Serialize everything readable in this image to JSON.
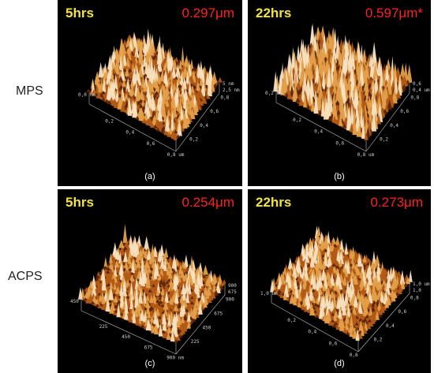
{
  "row_labels": {
    "top": "MPS",
    "bottom": "ACPS"
  },
  "panels": [
    {
      "id": "a",
      "time": "5hrs",
      "roughness": "0.297μm",
      "caption": "(a)",
      "ticks": [
        "0,2",
        "0,4",
        "0,6",
        "0,8 um",
        "0,2",
        "0,4",
        "0,6",
        "0,8",
        "5 nm",
        "2,5 nm",
        "0,0 nm"
      ]
    },
    {
      "id": "b",
      "time": "22hrs",
      "roughness": "0.597μm*",
      "caption": "(b)",
      "ticks": [
        "0,2",
        "0,4",
        "0,6",
        "0,8 um",
        "0,2",
        "0,4",
        "0,6",
        "0,8",
        "0,6",
        "0,4 um",
        "0,2 nm"
      ]
    },
    {
      "id": "c",
      "time": "5hrs",
      "roughness": "0.254μm",
      "caption": "(c)",
      "ticks": [
        "225",
        "450",
        "675",
        "900 nm",
        "225",
        "450",
        "675",
        "900",
        "900",
        "675",
        "450"
      ]
    },
    {
      "id": "d",
      "time": "22hrs",
      "roughness": "0.273μm",
      "caption": "(d)",
      "ticks": [
        "0,2",
        "0,4",
        "0,6",
        "0,8",
        "0,2",
        "0,4",
        "0,6",
        "0,8",
        "1,0 um",
        "1,0",
        "1,0 um"
      ]
    }
  ],
  "colors": {
    "panel_bg": "#000000",
    "time_label": "#f2e24a",
    "roughness_label": "#ff2020",
    "surface_dark": "#5a2408",
    "surface_mid": "#b25a16",
    "surface_light": "#e3a04a",
    "surface_peak": "#f7e2c0"
  }
}
